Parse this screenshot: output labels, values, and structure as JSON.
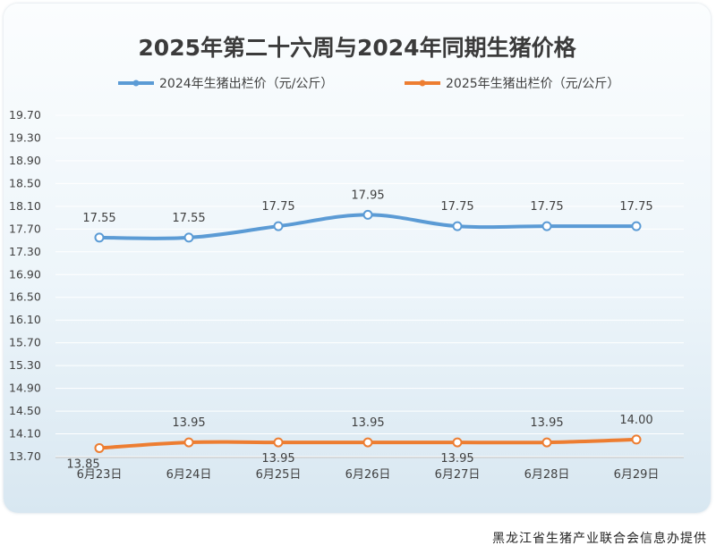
{
  "chart_data": {
    "type": "line",
    "title": "2025年第二十六周与2024年同期生猪价格",
    "categories": [
      "6月23日",
      "6月24日",
      "6月25日",
      "6月26日",
      "6月27日",
      "6月28日",
      "6月29日"
    ],
    "series": [
      {
        "name": "2024年生猪出栏价（元/公斤）",
        "color": "#5b9bd5",
        "values": [
          17.55,
          17.55,
          17.75,
          17.95,
          17.75,
          17.75,
          17.75
        ],
        "labels": [
          "17.55",
          "17.55",
          "17.75",
          "17.95",
          "17.75",
          "17.75",
          "17.75"
        ]
      },
      {
        "name": "2025年生猪出栏价（元/公斤）",
        "color": "#ed7d31",
        "values": [
          13.85,
          13.95,
          13.95,
          13.95,
          13.95,
          13.95,
          14.0
        ],
        "labels": [
          "13.85",
          "13.95",
          "13.95",
          "13.95",
          "13.95",
          "13.95",
          "14.00"
        ]
      }
    ],
    "yticks": [
      "13.70",
      "14.10",
      "14.50",
      "14.90",
      "15.30",
      "15.70",
      "16.10",
      "16.50",
      "16.90",
      "17.30",
      "17.70",
      "18.10",
      "18.50",
      "18.90",
      "19.30",
      "19.70"
    ],
    "ylim": [
      13.7,
      19.7
    ],
    "grid": true,
    "legend": "top-center",
    "label_position": {
      "2024年生猪出栏价（元/公斤）": [
        "above",
        "above",
        "above",
        "above",
        "above",
        "above",
        "above"
      ],
      "2025年生猪出栏价（元/公斤）": [
        "below",
        "above",
        "below",
        "above",
        "below",
        "above",
        "above"
      ]
    }
  },
  "source_note": "黑龙江省生猪产业联合会信息办提供"
}
